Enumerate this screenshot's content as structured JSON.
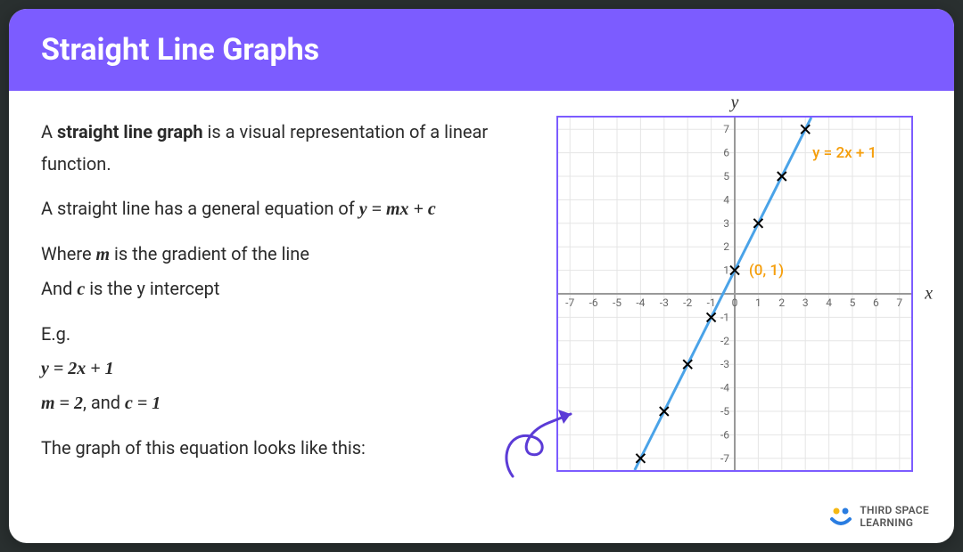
{
  "header": {
    "title": "Straight Line Graphs"
  },
  "text": {
    "line1_a": "A ",
    "line1_b": "straight line graph",
    "line1_c": " is a visual representation of a linear function.",
    "line2_a": "A straight line has a general equation of ",
    "line2_eq": "y = mx + c",
    "line3_a": "Where ",
    "line3_m": "m",
    "line3_b": " is the gradient of the line",
    "line4_a": "And ",
    "line4_c": "c",
    "line4_b": " is the y intercept",
    "eg": "E.g.",
    "ex1": "y = 2x + 1",
    "ex2_a": "m = 2",
    "ex2_b": ", and ",
    "ex2_c": "c = 1",
    "line5": "The graph of this equation looks like this:"
  },
  "chart": {
    "type": "line",
    "xlim": [
      -7.5,
      7.5
    ],
    "ylim": [
      -7.5,
      7.5
    ],
    "x_ticks": [
      -7,
      -6,
      -5,
      -4,
      -3,
      -2,
      -1,
      0,
      1,
      2,
      3,
      4,
      5,
      6,
      7
    ],
    "y_ticks": [
      -7,
      -6,
      -5,
      -4,
      -3,
      -2,
      -1,
      1,
      2,
      3,
      4,
      5,
      6,
      7
    ],
    "grid_color": "#e5e5e5",
    "axis_color": "#999999",
    "line_color": "#4aa3e8",
    "line_width": 3,
    "marker_color": "#000000",
    "equation_label": "y = 2x + 1",
    "intercept_label": "(0, 1)",
    "label_color": "#f59e0b",
    "points": [
      {
        "x": -4,
        "y": -7
      },
      {
        "x": -3,
        "y": -5
      },
      {
        "x": -2,
        "y": -3
      },
      {
        "x": -1,
        "y": -1
      },
      {
        "x": 0,
        "y": 1
      },
      {
        "x": 1,
        "y": 3
      },
      {
        "x": 2,
        "y": 5
      },
      {
        "x": 3,
        "y": 7
      }
    ],
    "line_start": {
      "x": -4.25,
      "y": -7.5
    },
    "line_end": {
      "x": 3.25,
      "y": 7.5
    },
    "y_axis_title": "y",
    "x_axis_title": "x",
    "tick_fontsize": 12,
    "tick_color": "#666666",
    "border_color": "#7c5cff"
  },
  "brand": {
    "line1": "THIRD SPACE",
    "line2": "LEARNING"
  },
  "arrow": {
    "color": "#5b3bd6"
  }
}
